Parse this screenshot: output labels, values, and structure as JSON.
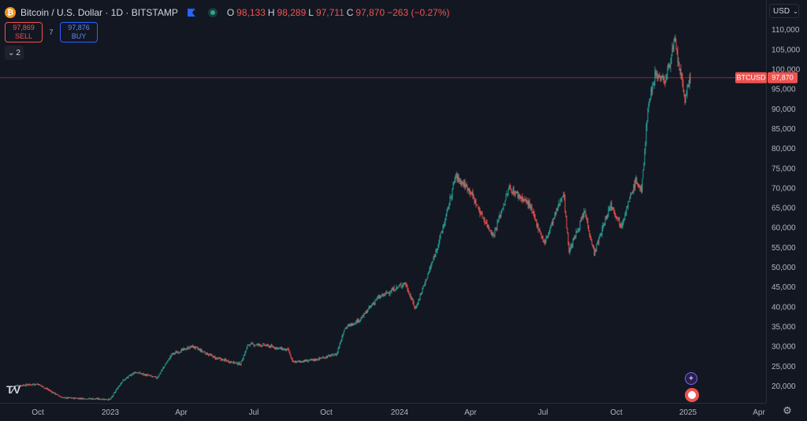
{
  "legend": {
    "symbol_icon": "bitcoin-icon",
    "title": "Bitcoin / U.S. Dollar · 1D · BITSTAMP",
    "open_label": "O",
    "open": "98,133",
    "high_label": "H",
    "high": "98,289",
    "low_label": "L",
    "low": "97,711",
    "close_label": "C",
    "close": "97,870",
    "change": "−263 (−0.27%)"
  },
  "trade": {
    "sell_price": "97,869",
    "sell_label": "SELL",
    "spread": "7",
    "buy_price": "97,876",
    "buy_label": "BUY"
  },
  "indicators_toggle": "2",
  "currency": "USD",
  "price_tag": {
    "symbol": "BTCUSD",
    "value": "97,870"
  },
  "colors": {
    "up": "#26a69a",
    "down": "#ef5350",
    "background": "#131722",
    "grid": "#2a2e39"
  },
  "chart_data": {
    "type": "candlestick",
    "title": "Bitcoin / U.S. Dollar · 1D · BITSTAMP",
    "y_axis": {
      "side": "right",
      "ticks": [
        110000,
        105000,
        100000,
        95000,
        90000,
        85000,
        80000,
        75000,
        70000,
        65000,
        60000,
        55000,
        50000,
        45000,
        40000,
        35000,
        30000,
        25000,
        20000
      ],
      "tick_labels": [
        "110,000",
        "105,000",
        "100,000",
        "95,000",
        "90,000",
        "85,000",
        "80,000",
        "75,000",
        "70,000",
        "65,000",
        "60,000",
        "55,000",
        "50,000",
        "45,000",
        "40,000",
        "35,000",
        "30,000",
        "25,000",
        "20,000"
      ]
    },
    "x_axis": {
      "ticks": [
        "2022-10-01",
        "2023-01-01",
        "2023-04-01",
        "2023-07-01",
        "2023-10-01",
        "2024-01-01",
        "2024-04-01",
        "2024-07-01",
        "2024-10-01",
        "2025-01-01",
        "2025-04-01"
      ],
      "tick_labels": [
        "Oct",
        "2023",
        "Apr",
        "Jul",
        "Oct",
        "2024",
        "Apr",
        "Jul",
        "Oct",
        "2025",
        "Apr"
      ]
    },
    "last_price": 97870,
    "grid": false,
    "series": [
      {
        "date": "2022-09-01",
        "close": 20000
      },
      {
        "date": "2022-10-01",
        "close": 20500
      },
      {
        "date": "2022-11-01",
        "close": 17000
      },
      {
        "date": "2022-12-01",
        "close": 16800
      },
      {
        "date": "2023-01-01",
        "close": 16600
      },
      {
        "date": "2023-01-15",
        "close": 21000
      },
      {
        "date": "2023-02-01",
        "close": 23500
      },
      {
        "date": "2023-03-01",
        "close": 22000
      },
      {
        "date": "2023-03-20",
        "close": 28000
      },
      {
        "date": "2023-04-15",
        "close": 30000
      },
      {
        "date": "2023-05-15",
        "close": 27000
      },
      {
        "date": "2023-06-15",
        "close": 25500
      },
      {
        "date": "2023-06-25",
        "close": 30500
      },
      {
        "date": "2023-07-15",
        "close": 30300
      },
      {
        "date": "2023-08-15",
        "close": 29000
      },
      {
        "date": "2023-08-20",
        "close": 26000
      },
      {
        "date": "2023-09-15",
        "close": 26500
      },
      {
        "date": "2023-10-15",
        "close": 28000
      },
      {
        "date": "2023-10-25",
        "close": 34500
      },
      {
        "date": "2023-11-15",
        "close": 37000
      },
      {
        "date": "2023-12-05",
        "close": 42000
      },
      {
        "date": "2024-01-10",
        "close": 46000
      },
      {
        "date": "2024-01-23",
        "close": 39500
      },
      {
        "date": "2024-02-15",
        "close": 52000
      },
      {
        "date": "2024-03-01",
        "close": 62000
      },
      {
        "date": "2024-03-14",
        "close": 73000
      },
      {
        "date": "2024-04-01",
        "close": 69500
      },
      {
        "date": "2024-04-15",
        "close": 63500
      },
      {
        "date": "2024-05-01",
        "close": 58000
      },
      {
        "date": "2024-05-21",
        "close": 70000
      },
      {
        "date": "2024-06-15",
        "close": 66000
      },
      {
        "date": "2024-07-05",
        "close": 56000
      },
      {
        "date": "2024-07-29",
        "close": 69000
      },
      {
        "date": "2024-08-05",
        "close": 54000
      },
      {
        "date": "2024-08-25",
        "close": 64000
      },
      {
        "date": "2024-09-06",
        "close": 53500
      },
      {
        "date": "2024-09-27",
        "close": 66000
      },
      {
        "date": "2024-10-10",
        "close": 60500
      },
      {
        "date": "2024-10-29",
        "close": 72000
      },
      {
        "date": "2024-11-05",
        "close": 69000
      },
      {
        "date": "2024-11-13",
        "close": 90000
      },
      {
        "date": "2024-11-22",
        "close": 99000
      },
      {
        "date": "2024-12-05",
        "close": 97000
      },
      {
        "date": "2024-12-17",
        "close": 107000
      },
      {
        "date": "2024-12-30",
        "close": 92500
      },
      {
        "date": "2025-01-06",
        "close": 97870
      }
    ]
  }
}
